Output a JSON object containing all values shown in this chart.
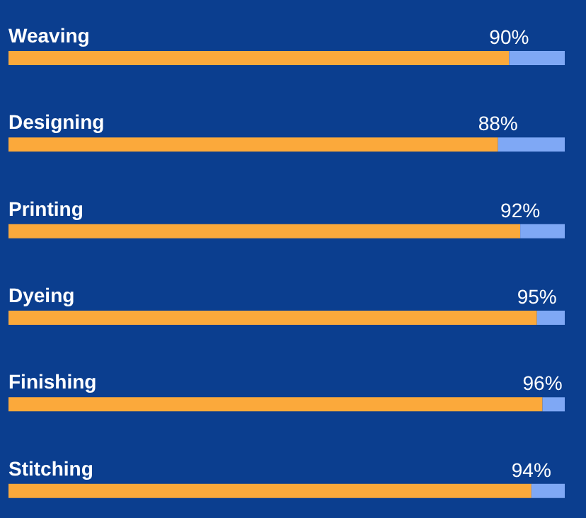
{
  "chart_data": {
    "type": "bar",
    "orientation": "horizontal",
    "stacked": true,
    "categories": [
      "Weaving",
      "Designing",
      "Printing",
      "Dyeing",
      "Finishing",
      "Stitching"
    ],
    "series": [
      {
        "color": "#fba93b",
        "values": [
          90,
          88,
          92,
          95,
          96,
          94
        ],
        "value_labels": [
          "90%",
          "88%",
          "92%",
          "95%",
          "96%",
          "94%"
        ]
      },
      {
        "color": "#7fa8f5",
        "values": [
          10,
          12,
          8,
          5,
          4,
          6
        ]
      }
    ],
    "tick_labels": false
  }
}
